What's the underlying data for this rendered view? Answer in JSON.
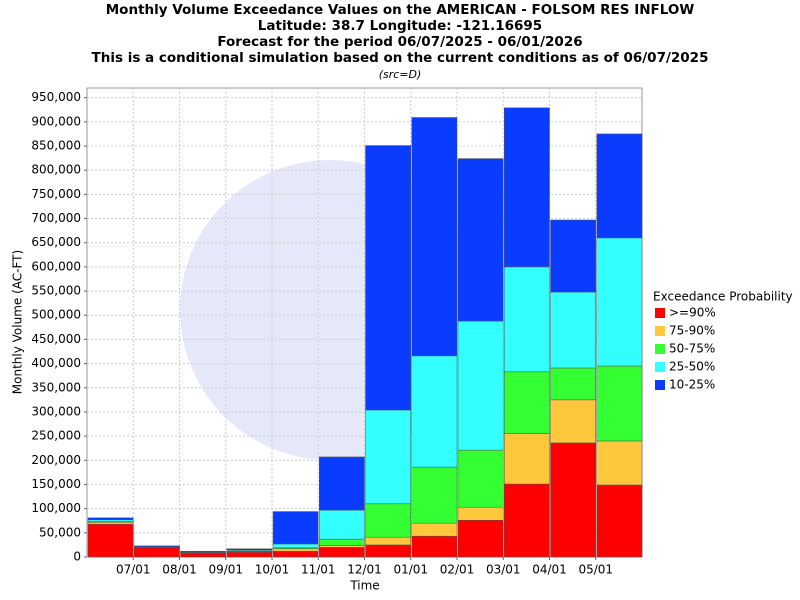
{
  "chart_data": {
    "type": "stacked_bar",
    "title": [
      "Monthly Volume Exceedance Values on the AMERICAN - FOLSOM RES INFLOW",
      "Latitude: 38.7 Longitude: -121.16695",
      "Forecast for the period 06/07/2025 - 06/01/2026",
      "This is a conditional simulation based on the current conditions as of 06/07/2025"
    ],
    "subtitle": "(src=D)",
    "xlabel": "Time",
    "ylabel": "Monthly Volume (AC-FT)",
    "xtick_labels": [
      "07/01",
      "08/01",
      "09/01",
      "10/01",
      "11/01",
      "12/01",
      "01/01",
      "02/01",
      "03/01",
      "04/01",
      "05/01"
    ],
    "legend_title": "Exceedance Probability",
    "legend": "right",
    "grid": true,
    "ylim": [
      0,
      970000
    ],
    "yticks": [
      0,
      {
        "value": 50000,
        "label": "50,000"
      },
      {
        "value": 100000,
        "label": "100,000"
      },
      {
        "value": 150000,
        "label": "150,000"
      },
      {
        "value": 200000,
        "label": "200,000"
      },
      {
        "value": 250000,
        "label": "250,000"
      },
      {
        "value": 300000,
        "label": "300,000"
      },
      {
        "value": 350000,
        "label": "350,000"
      },
      {
        "value": 400000,
        "label": "400,000"
      },
      {
        "value": 450000,
        "label": "450,000"
      },
      {
        "value": 500000,
        "label": "500,000"
      },
      {
        "value": 550000,
        "label": "550,000"
      },
      {
        "value": 600000,
        "label": "600,000"
      },
      {
        "value": 650000,
        "label": "650,000"
      },
      {
        "value": 700000,
        "label": "700,000"
      },
      {
        "value": 750000,
        "label": "750,000"
      },
      {
        "value": 800000,
        "label": "800,000"
      },
      {
        "value": 850000,
        "label": "850,000"
      },
      {
        "value": 900000,
        "label": "900,000"
      },
      {
        "value": 950000,
        "label": "950,000"
      }
    ],
    "series": [
      {
        "name": ">=90%",
        "color": "#ff0000",
        "values": [
          68000,
          19000,
          8000,
          10000,
          12000,
          20000,
          25000,
          43000,
          76000,
          151000,
          236000,
          149000
        ]
      },
      {
        "name": "75-90%",
        "color": "#ffc83c",
        "values": [
          4000,
          500,
          500,
          1000,
          5000,
          4000,
          16000,
          27000,
          27000,
          104000,
          89000,
          91000
        ]
      },
      {
        "name": "50-75%",
        "color": "#33ff33",
        "values": [
          2000,
          500,
          500,
          1000,
          2000,
          13000,
          69000,
          116000,
          118000,
          128000,
          66000,
          155000
        ]
      },
      {
        "name": "25-50%",
        "color": "#33ffff",
        "values": [
          3000,
          1000,
          1000,
          2000,
          8000,
          60000,
          194000,
          230000,
          267000,
          217000,
          157000,
          265000
        ]
      },
      {
        "name": "10-25%",
        "color": "#0a3cff",
        "values": [
          4000,
          2000,
          2000,
          3000,
          67000,
          110000,
          547000,
          493000,
          336000,
          329000,
          149000,
          215000
        ]
      }
    ]
  }
}
